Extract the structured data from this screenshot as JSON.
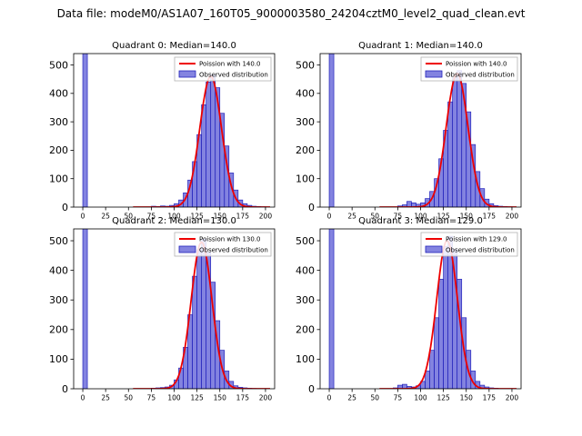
{
  "figure_title": "Data file: modeM0/AS1A07_160T05_9000003580_24204cztM0_level2_quad_clean.evt",
  "colors": {
    "curve": "#ee0000",
    "bar_fill": "rgba(55,55,205,0.62)",
    "bar_edge": "#2222bb",
    "axes": "#000000",
    "legend_border": "#b3b3b3",
    "background": "#ffffff"
  },
  "axis": {
    "xlim": [
      -10,
      210
    ],
    "ylim": [
      0,
      540
    ],
    "xticks": [
      0,
      25,
      50,
      75,
      100,
      125,
      150,
      175,
      200
    ],
    "yticks": [
      0,
      100,
      200,
      300,
      400,
      500
    ]
  },
  "chart_data": [
    {
      "type": "bar",
      "title": "Quadrant 0: Median=140.0",
      "median": 140.0,
      "legend": {
        "curve": "Poission with 140.0",
        "hist": "Observed distribution"
      },
      "bin_width": 5,
      "bins": [
        0,
        75,
        80,
        85,
        90,
        95,
        100,
        105,
        110,
        115,
        120,
        125,
        130,
        135,
        140,
        145,
        150,
        155,
        160,
        165,
        170,
        175,
        180,
        185,
        190,
        195
      ],
      "counts": [
        600,
        3,
        2,
        4,
        3,
        6,
        12,
        25,
        50,
        95,
        160,
        255,
        360,
        440,
        465,
        420,
        330,
        215,
        120,
        60,
        25,
        12,
        6,
        3,
        2,
        1
      ],
      "curve": {
        "label": "Poission with 140.0",
        "lambda": 140,
        "amplitude": 460
      }
    },
    {
      "type": "bar",
      "title": "Quadrant 1: Median=140.0",
      "median": 140.0,
      "legend": {
        "curve": "Poission with 140.0",
        "hist": "Observed distribution"
      },
      "bin_width": 5,
      "bins": [
        0,
        75,
        80,
        85,
        90,
        95,
        100,
        105,
        110,
        115,
        120,
        125,
        130,
        135,
        140,
        145,
        150,
        155,
        160,
        165,
        170,
        175,
        180,
        185,
        190,
        195
      ],
      "counts": [
        600,
        4,
        8,
        20,
        15,
        10,
        15,
        30,
        55,
        100,
        170,
        270,
        370,
        455,
        480,
        435,
        335,
        220,
        125,
        65,
        28,
        12,
        5,
        3,
        2,
        1
      ],
      "curve": {
        "label": "Poission with 140.0",
        "lambda": 140,
        "amplitude": 470
      }
    },
    {
      "type": "bar",
      "title": "Quadrant 2: Median=130.0",
      "median": 130.0,
      "legend": {
        "curve": "Poission with 130.0",
        "hist": "Observed distribution"
      },
      "bin_width": 5,
      "bins": [
        0,
        75,
        80,
        85,
        90,
        95,
        100,
        105,
        110,
        115,
        120,
        125,
        130,
        135,
        140,
        145,
        150,
        155,
        160,
        165,
        170,
        175,
        180,
        185
      ],
      "counts": [
        600,
        2,
        3,
        4,
        6,
        12,
        30,
        70,
        140,
        250,
        380,
        470,
        505,
        460,
        360,
        230,
        130,
        60,
        25,
        10,
        5,
        3,
        2,
        1
      ],
      "curve": {
        "label": "Poission with 130.0",
        "lambda": 130,
        "amplitude": 495
      }
    },
    {
      "type": "bar",
      "title": "Quadrant 3: Median=129.0",
      "median": 129.0,
      "legend": {
        "curve": "Poission with 129.0",
        "hist": "Observed distribution"
      },
      "bin_width": 5,
      "bins": [
        0,
        70,
        75,
        80,
        85,
        90,
        95,
        100,
        105,
        110,
        115,
        120,
        125,
        130,
        135,
        140,
        145,
        150,
        155,
        160,
        165,
        170,
        175,
        180
      ],
      "counts": [
        600,
        3,
        12,
        15,
        8,
        6,
        10,
        25,
        60,
        130,
        240,
        370,
        480,
        515,
        470,
        370,
        240,
        130,
        60,
        25,
        12,
        6,
        3,
        2
      ],
      "curve": {
        "label": "Poission with 129.0",
        "lambda": 129,
        "amplitude": 500
      }
    }
  ]
}
